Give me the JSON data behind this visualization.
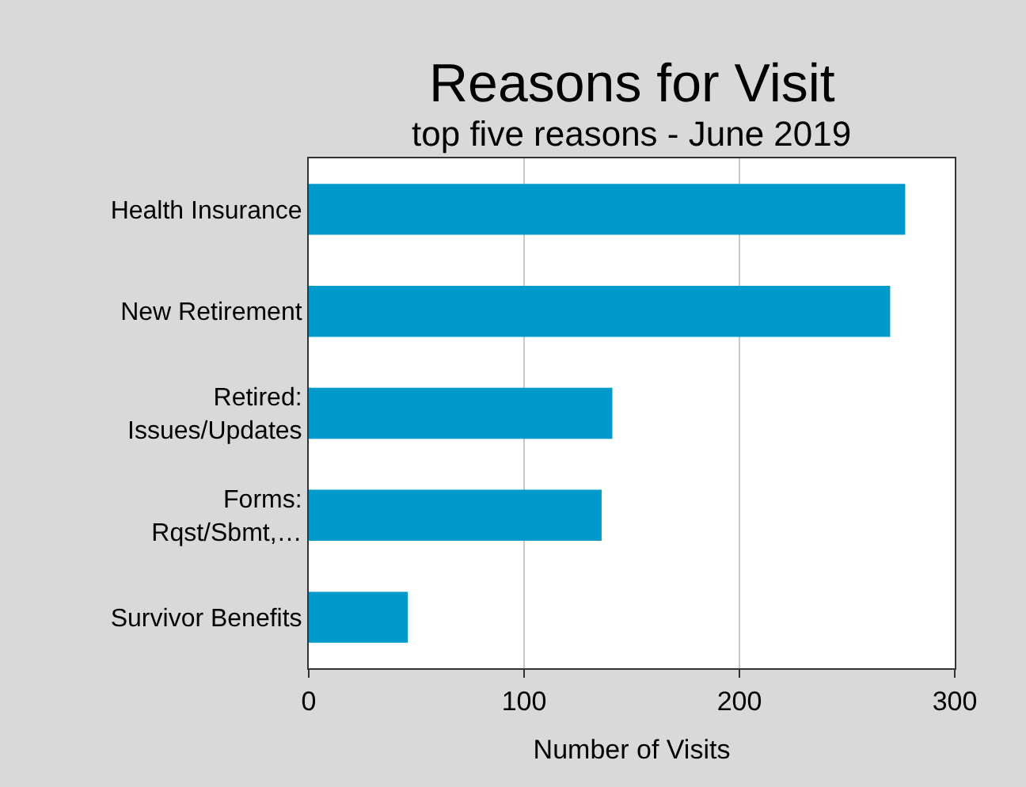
{
  "chart_data": {
    "type": "bar",
    "orientation": "horizontal",
    "title": "Reasons for Visit",
    "subtitle": "top five reasons - June 2019",
    "categories": [
      "Health Insurance",
      "New Retirement",
      "Retired:\nIssues/Updates",
      "Forms:\nRqst/Sbmt,…",
      "Survivor Benefits"
    ],
    "values": [
      277,
      270,
      141,
      136,
      46
    ],
    "color": "#0099cc",
    "xlabel": "Number of Visits",
    "xlim": [
      0,
      300
    ],
    "xticks": [
      0,
      100,
      200,
      300
    ],
    "grid": "x"
  }
}
